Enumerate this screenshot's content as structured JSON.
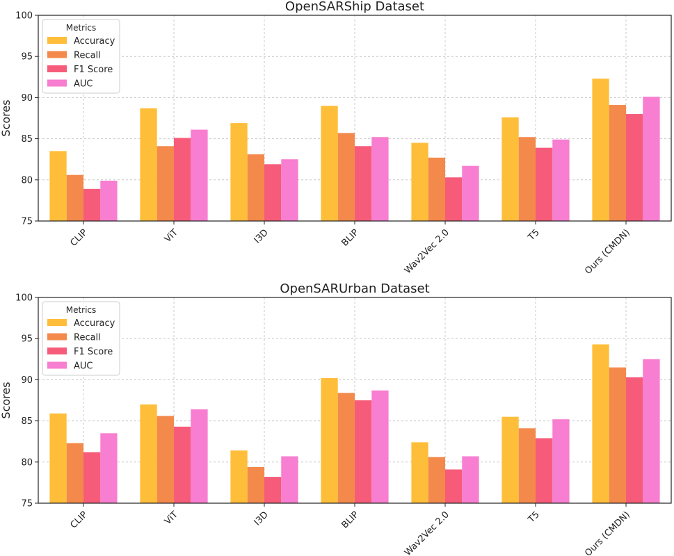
{
  "chart_data": [
    {
      "type": "bar",
      "title": "OpenSARShip Dataset",
      "xlabel": "",
      "ylabel": "Scores",
      "ylim": [
        75,
        100
      ],
      "yticks": [
        75,
        80,
        85,
        90,
        95,
        100
      ],
      "grid": true,
      "legend_title": "Metrics",
      "legend_position": "top-left",
      "categories": [
        "CLIP",
        "ViT",
        "I3D",
        "BLIP",
        "Wav2Vec 2.0",
        "T5",
        "Ours (CMDN)"
      ],
      "series": [
        {
          "name": "Accuracy",
          "color": "#FFBE3A",
          "values": [
            83.5,
            88.7,
            86.9,
            89.0,
            84.5,
            87.6,
            92.3
          ]
        },
        {
          "name": "Recall",
          "color": "#F4894C",
          "values": [
            80.6,
            84.1,
            83.1,
            85.7,
            82.7,
            85.2,
            89.1
          ]
        },
        {
          "name": "F1 Score",
          "color": "#F65C7A",
          "values": [
            78.9,
            85.1,
            81.9,
            84.1,
            80.3,
            83.9,
            88.0
          ]
        },
        {
          "name": "AUC",
          "color": "#F77ED0",
          "values": [
            79.9,
            86.1,
            82.5,
            85.2,
            81.7,
            84.9,
            90.1
          ]
        }
      ]
    },
    {
      "type": "bar",
      "title": "OpenSARUrban Dataset",
      "xlabel": "",
      "ylabel": "Scores",
      "ylim": [
        75,
        100
      ],
      "yticks": [
        75,
        80,
        85,
        90,
        95,
        100
      ],
      "grid": true,
      "legend_title": "Metrics",
      "legend_position": "top-left",
      "categories": [
        "CLIP",
        "ViT",
        "I3D",
        "BLIP",
        "Wav2Vec 2.0",
        "T5",
        "Ours (CMDN)"
      ],
      "series": [
        {
          "name": "Accuracy",
          "color": "#FFBE3A",
          "values": [
            85.9,
            87.0,
            81.4,
            90.2,
            82.4,
            85.5,
            94.3
          ]
        },
        {
          "name": "Recall",
          "color": "#F4894C",
          "values": [
            82.3,
            85.6,
            79.4,
            88.4,
            80.6,
            84.1,
            91.5
          ]
        },
        {
          "name": "F1 Score",
          "color": "#F65C7A",
          "values": [
            81.2,
            84.3,
            78.2,
            87.5,
            79.1,
            82.9,
            90.3
          ]
        },
        {
          "name": "AUC",
          "color": "#F77ED0",
          "values": [
            83.5,
            86.4,
            80.7,
            88.7,
            80.7,
            85.2,
            92.5
          ]
        }
      ]
    }
  ]
}
